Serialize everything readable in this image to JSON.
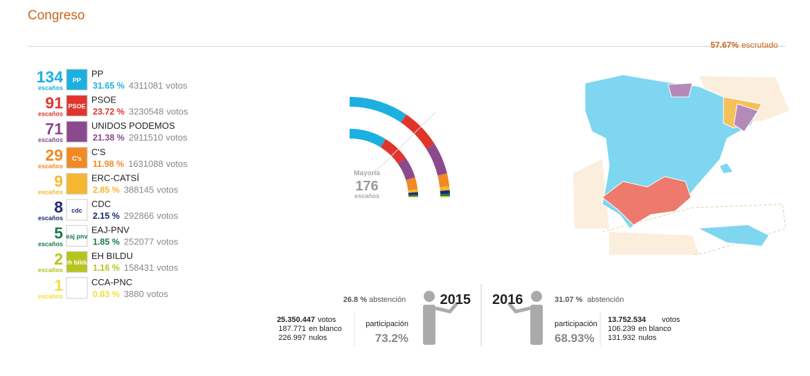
{
  "header": {
    "title": "Congreso",
    "scrutinized": "57.67%",
    "scrutinized_label": "escrutado"
  },
  "parties": [
    {
      "seats": 134,
      "seats_label": "escaños",
      "name": "PP",
      "logo_text": "PP",
      "pct": "31.65 %",
      "votes": 4311081,
      "votes_label": "votos",
      "color": "#1bb0e0",
      "seats_2015": 123
    },
    {
      "seats": 91,
      "seats_label": "escaños",
      "name": "PSOE",
      "logo_text": "PSOE",
      "pct": "23.72 %",
      "votes": 3230548,
      "votes_label": "votos",
      "color": "#e0352b",
      "seats_2015": 90
    },
    {
      "seats": 71,
      "seats_label": "escaños",
      "name": "UNIDOS PODEMOS",
      "pct": "21.38 %",
      "votes": 2911510,
      "votes_label": "votos",
      "color": "#8b4a8e",
      "seats_2015": 69
    },
    {
      "seats": 29,
      "seats_label": "escaños",
      "name": "C'S",
      "logo_text": "C's",
      "pct": "11.98 %",
      "votes": 1631088,
      "votes_label": "votos",
      "color": "#f08a24",
      "seats_2015": 40
    },
    {
      "seats": 9,
      "seats_label": "escaños",
      "name": "ERC-CATSÍ",
      "pct": "2.85 %",
      "votes": 388145,
      "votes_label": "votos",
      "color": "#f5b731",
      "seats_2015": 9
    },
    {
      "seats": 8,
      "seats_label": "escaños",
      "name": "CDC",
      "logo_text": "cdc",
      "pct": "2.15 %",
      "votes": 292866,
      "votes_label": "votos",
      "color": "#1d2a6e",
      "seats_2015": 8
    },
    {
      "seats": 5,
      "seats_label": "escaños",
      "name": "EAJ-PNV",
      "logo_text": "eaj pnv",
      "pct": "1.85 %",
      "votes": 252077,
      "votes_label": "votos",
      "color": "#1a7a4c",
      "seats_2015": 6
    },
    {
      "seats": 2,
      "seats_label": "escaños",
      "name": "EH BILDU",
      "logo_text": "eh bildu",
      "pct": "1.16 %",
      "votes": 158431,
      "votes_label": "votos",
      "color": "#b6c41e",
      "seats_2015": 2
    },
    {
      "seats": 1,
      "seats_label": "escaños",
      "name": "CCA-PNC",
      "pct": "0.03 %",
      "votes": 3880,
      "votes_label": "votos",
      "color": "#f2df3c",
      "seats_2015": 1
    }
  ],
  "majority": {
    "label": "Mayoría",
    "value": 176,
    "unit": "escaños"
  },
  "years": [
    {
      "year": "2015",
      "abstention": "26.8 %",
      "abstention_label": "abstención",
      "votes": "25.350.447",
      "votes_label": "votos",
      "blank": "187.771",
      "blank_label": "en blanco",
      "null": "226.997",
      "null_label": "nulos",
      "participation_label": "participación",
      "participation": "73.2%"
    },
    {
      "year": "2016",
      "abstention": "31.07 %",
      "abstention_label": "abstención",
      "votes": "13.752.534",
      "votes_label": "votos",
      "blank": "106.239",
      "blank_label": "en blanco",
      "null": "131.932",
      "null_label": "nulos",
      "participation_label": "participación",
      "participation": "68.93%"
    }
  ]
}
